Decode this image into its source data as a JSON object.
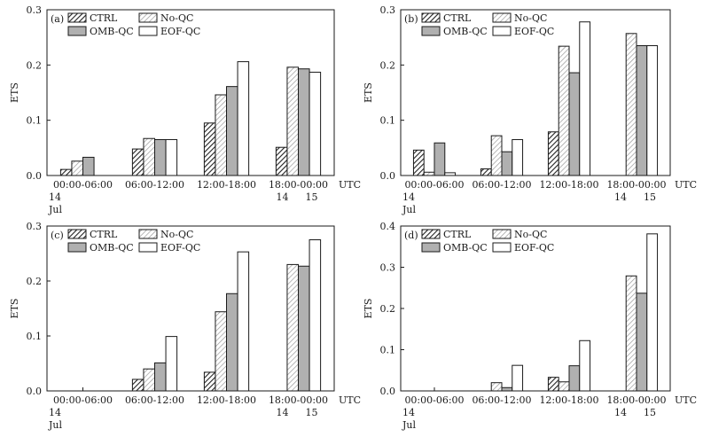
{
  "chart_data": [
    {
      "type": "bar",
      "panel_label": "(a)",
      "ylabel": "ETS",
      "ylim": [
        0,
        0.3
      ],
      "yticks": [
        "0.0",
        "0.1",
        "0.2",
        "0.3"
      ],
      "xunit": "UTC",
      "categories": [
        "00:00-06:00",
        "06:00-12:00",
        "12:00-18:00",
        "18:00-00:00"
      ],
      "date_labels": [
        {
          "text": "14",
          "pos": 0
        },
        {
          "text": "Jul",
          "pos": 0
        },
        {
          "text": "14",
          "pos": 3
        },
        {
          "text": "15",
          "pos": 3.5
        }
      ],
      "series": [
        {
          "name": "CTRL",
          "values": [
            0.011,
            0.048,
            0.095,
            0.051
          ]
        },
        {
          "name": "No-QC",
          "values": [
            0.026,
            0.067,
            0.146,
            0.196
          ]
        },
        {
          "name": "OMB-QC",
          "values": [
            0.033,
            0.065,
            0.161,
            0.193
          ]
        },
        {
          "name": "EOF-QC",
          "values": [
            0.0,
            0.065,
            0.206,
            0.187
          ]
        }
      ]
    },
    {
      "type": "bar",
      "panel_label": "(b)",
      "ylabel": "ETS",
      "ylim": [
        0,
        0.3
      ],
      "yticks": [
        "0.0",
        "0.1",
        "0.2",
        "0.3"
      ],
      "xunit": "UTC",
      "categories": [
        "00:00-06:00",
        "06:00-12:00",
        "12:00-18:00",
        "18:00-00:00"
      ],
      "date_labels": [
        {
          "text": "14",
          "pos": 0
        },
        {
          "text": "Jul",
          "pos": 0
        },
        {
          "text": "14",
          "pos": 3
        },
        {
          "text": "15",
          "pos": 3.5
        }
      ],
      "series": [
        {
          "name": "CTRL",
          "values": [
            0.046,
            0.012,
            0.079,
            0.0
          ]
        },
        {
          "name": "No-QC",
          "values": [
            0.006,
            0.072,
            0.234,
            0.257
          ]
        },
        {
          "name": "OMB-QC",
          "values": [
            0.059,
            0.043,
            0.186,
            0.235
          ]
        },
        {
          "name": "EOF-QC",
          "values": [
            0.005,
            0.065,
            0.278,
            0.235
          ]
        }
      ]
    },
    {
      "type": "bar",
      "panel_label": "(c)",
      "ylabel": "ETS",
      "ylim": [
        0,
        0.3
      ],
      "yticks": [
        "0.0",
        "0.1",
        "0.2",
        "0.3"
      ],
      "xunit": "UTC",
      "categories": [
        "00:00-06:00",
        "06:00-12:00",
        "12:00-18:00",
        "18:00-00:00"
      ],
      "date_labels": [
        {
          "text": "14",
          "pos": 0
        },
        {
          "text": "Jul",
          "pos": 0
        },
        {
          "text": "14",
          "pos": 3
        },
        {
          "text": "15",
          "pos": 3.5
        }
      ],
      "series": [
        {
          "name": "CTRL",
          "values": [
            0.0,
            0.021,
            0.034,
            0.0
          ]
        },
        {
          "name": "No-QC",
          "values": [
            0.0,
            0.04,
            0.144,
            0.23
          ]
        },
        {
          "name": "OMB-QC",
          "values": [
            0.0,
            0.051,
            0.177,
            0.227
          ]
        },
        {
          "name": "EOF-QC",
          "values": [
            0.0,
            0.099,
            0.253,
            0.275
          ]
        }
      ]
    },
    {
      "type": "bar",
      "panel_label": "(d)",
      "ylabel": "ETS",
      "ylim": [
        0,
        0.4
      ],
      "yticks": [
        "0.0",
        "0.1",
        "0.2",
        "0.3",
        "0.4"
      ],
      "xunit": "UTC",
      "categories": [
        "00:00-06:00",
        "06:00-12:00",
        "12:00-18:00",
        "18:00-00:00"
      ],
      "date_labels": [
        {
          "text": "14",
          "pos": 0
        },
        {
          "text": "Jul",
          "pos": 0
        },
        {
          "text": "14",
          "pos": 3
        },
        {
          "text": "15",
          "pos": 3.5
        }
      ],
      "series": [
        {
          "name": "CTRL",
          "values": [
            0.0,
            0.0,
            0.033,
            0.0
          ]
        },
        {
          "name": "No-QC",
          "values": [
            0.0,
            0.02,
            0.022,
            0.279
          ]
        },
        {
          "name": "OMB-QC",
          "values": [
            0.0,
            0.008,
            0.061,
            0.237
          ]
        },
        {
          "name": "EOF-QC",
          "values": [
            0.0,
            0.062,
            0.122,
            0.381
          ]
        }
      ]
    }
  ]
}
